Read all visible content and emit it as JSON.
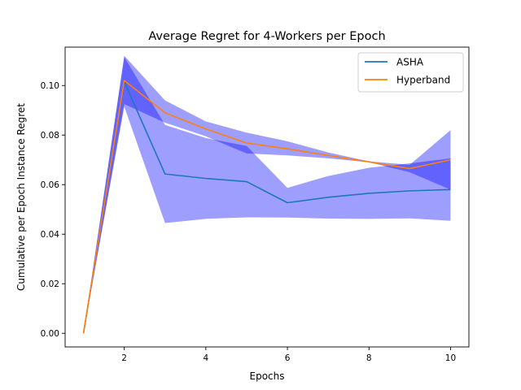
{
  "chart_data": {
    "type": "line",
    "title": "Average Regret for 4-Workers per Epoch",
    "xlabel": "Epochs",
    "ylabel": "Cumulative per Epoch Instance Regret",
    "xlim": [
      0.55,
      10.45
    ],
    "ylim": [
      -0.0055,
      0.1155
    ],
    "x_ticks": [
      2,
      4,
      6,
      8,
      10
    ],
    "x_tick_labels": [
      "2",
      "4",
      "6",
      "8",
      "10"
    ],
    "y_ticks": [
      0.0,
      0.02,
      0.04,
      0.06,
      0.08,
      0.1
    ],
    "y_tick_labels": [
      "0.00",
      "0.02",
      "0.04",
      "0.06",
      "0.08",
      "0.10"
    ],
    "grid": false,
    "legend_position": "top-right",
    "x": [
      1,
      2,
      3,
      4,
      5,
      6,
      7,
      8,
      9,
      10
    ],
    "series": [
      {
        "name": "ASHA",
        "color": "#1f77b4",
        "values": [
          0.0,
          0.1015,
          0.0643,
          0.0625,
          0.0612,
          0.0527,
          0.0549,
          0.0565,
          0.0575,
          0.058
        ],
        "band_lower": [
          0.0,
          0.0915,
          0.0445,
          0.0462,
          0.0468,
          0.0467,
          0.0463,
          0.0462,
          0.0464,
          0.0454
        ],
        "band_upper": [
          0.0,
          0.1115,
          0.0841,
          0.0788,
          0.0756,
          0.0587,
          0.0635,
          0.0668,
          0.0686,
          0.0706
        ]
      },
      {
        "name": "Hyperband",
        "color": "#ff7f0e",
        "values": [
          0.0,
          0.102,
          0.089,
          0.0825,
          0.0768,
          0.0745,
          0.0718,
          0.0692,
          0.0665,
          0.07
        ],
        "band_lower": [
          0.0,
          0.0925,
          0.085,
          0.0795,
          0.0726,
          0.0718,
          0.0706,
          0.069,
          0.065,
          0.058
        ],
        "band_upper": [
          0.0,
          0.112,
          0.094,
          0.0855,
          0.081,
          0.0775,
          0.073,
          0.0694,
          0.068,
          0.082
        ]
      }
    ],
    "band_color": "#0000ff",
    "band_opacity": 0.38
  }
}
